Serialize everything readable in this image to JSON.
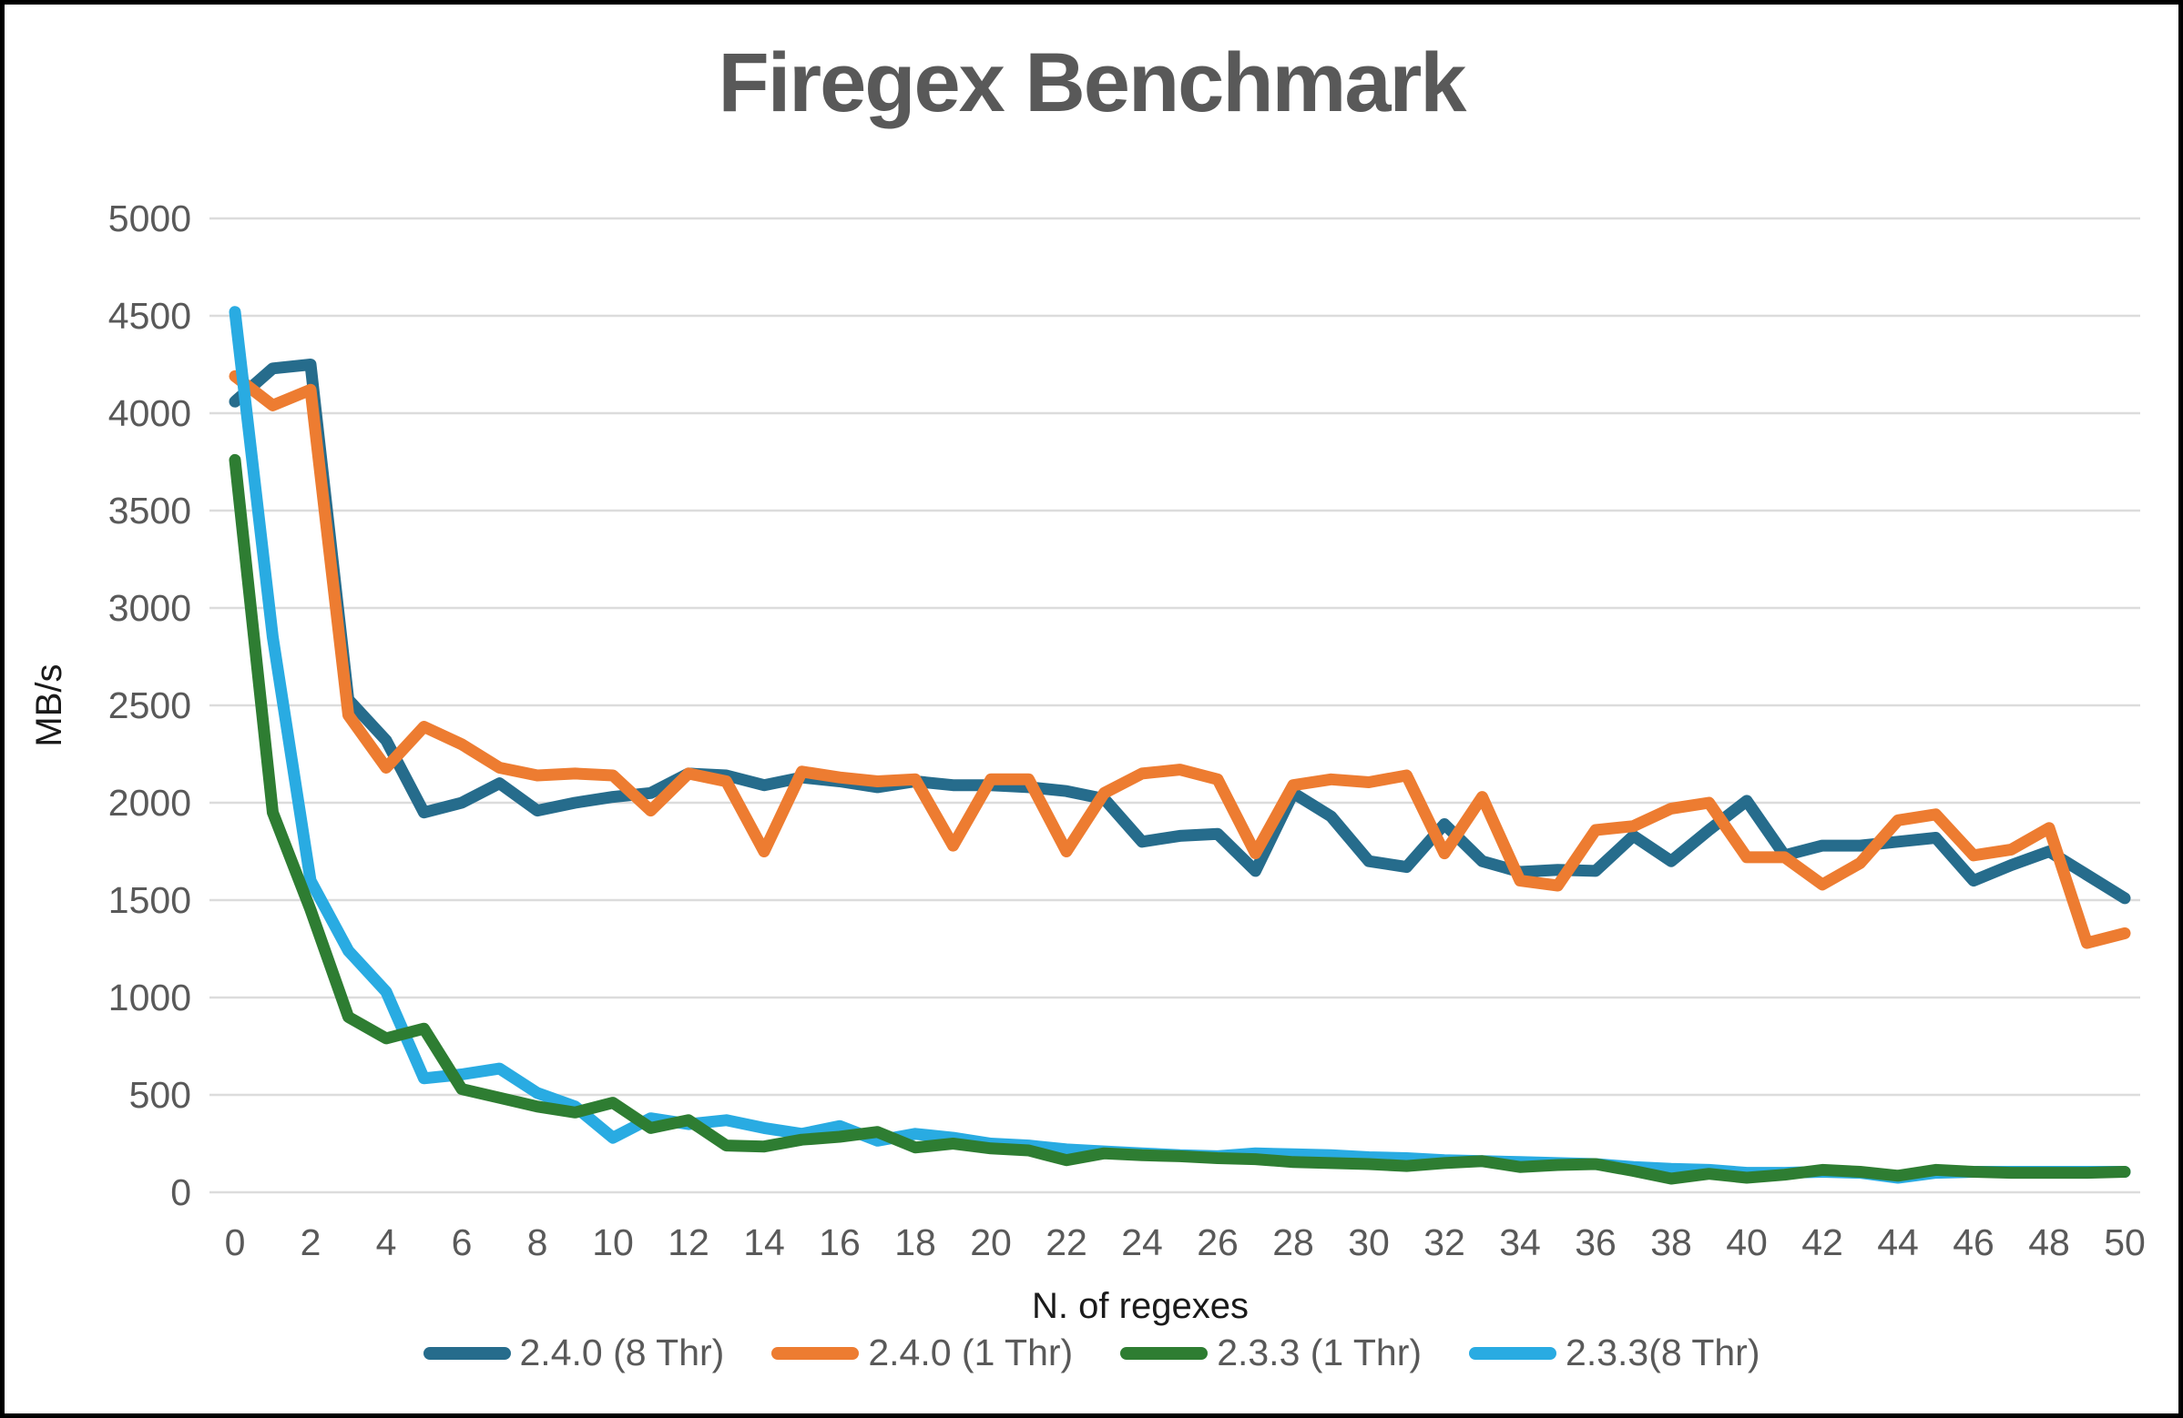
{
  "title": "Firegex Benchmark",
  "colors": {
    "title_text": "#595959",
    "tick_text": "#595959",
    "axis_title_text": "#1a1a1a",
    "gridline": "#dcdcdc",
    "frame_border": "#000000",
    "background": "#ffffff",
    "series_teal": "#266c8c",
    "series_orange": "#ed7c31",
    "series_green": "#2e7d32",
    "series_cyan": "#29abe2"
  },
  "chart_data": {
    "type": "line",
    "title": "Firegex Benchmark",
    "xlabel": "N. of regexes",
    "ylabel": "MB/s",
    "xlim": [
      0,
      50
    ],
    "ylim": [
      0,
      5000
    ],
    "grid": true,
    "legend_position": "bottom",
    "x_ticks": [
      0,
      2,
      4,
      6,
      8,
      10,
      12,
      14,
      16,
      18,
      20,
      22,
      24,
      26,
      28,
      30,
      32,
      34,
      36,
      38,
      40,
      42,
      44,
      46,
      48,
      50
    ],
    "y_ticks": [
      0,
      500,
      1000,
      1500,
      2000,
      2500,
      3000,
      3500,
      4000,
      4500,
      5000
    ],
    "x": [
      0,
      1,
      2,
      3,
      4,
      5,
      6,
      7,
      8,
      9,
      10,
      11,
      12,
      13,
      14,
      15,
      16,
      17,
      18,
      19,
      20,
      21,
      22,
      23,
      24,
      25,
      26,
      27,
      28,
      29,
      30,
      31,
      32,
      33,
      34,
      35,
      36,
      37,
      38,
      39,
      40,
      41,
      42,
      43,
      44,
      45,
      46,
      47,
      48,
      49,
      50
    ],
    "series": [
      {
        "name": "2.4.0 (8 Thr)",
        "color": "#266c8c",
        "values": [
          4060,
          4230,
          4250,
          2530,
          2320,
          1950,
          2000,
          2100,
          1960,
          2000,
          2030,
          2050,
          2150,
          2140,
          2090,
          2130,
          2110,
          2080,
          2110,
          2090,
          2090,
          2080,
          2060,
          2020,
          1800,
          1830,
          1840,
          1650,
          2050,
          1930,
          1700,
          1670,
          1890,
          1700,
          1645,
          1655,
          1650,
          1830,
          1700,
          1860,
          2010,
          1730,
          1780,
          1780,
          1800,
          1820,
          1600,
          1680,
          1750,
          1630,
          1510
        ]
      },
      {
        "name": "2.4.0 (1 Thr)",
        "color": "#ed7c31",
        "values": [
          4190,
          4040,
          4120,
          2450,
          2180,
          2390,
          2300,
          2180,
          2140,
          2150,
          2140,
          1960,
          2150,
          2110,
          1750,
          2160,
          2130,
          2110,
          2120,
          1780,
          2120,
          2120,
          1750,
          2050,
          2150,
          2170,
          2120,
          1740,
          2090,
          2120,
          2105,
          2140,
          1740,
          2030,
          1600,
          1575,
          1860,
          1880,
          1970,
          2000,
          1720,
          1720,
          1580,
          1690,
          1910,
          1940,
          1730,
          1760,
          1870,
          1280,
          1330
        ]
      },
      {
        "name": "2.3.3 (1 Thr)",
        "color": "#2e7d32",
        "values": [
          3760,
          1950,
          1450,
          900,
          790,
          840,
          530,
          485,
          440,
          410,
          460,
          330,
          370,
          240,
          235,
          270,
          285,
          310,
          230,
          250,
          225,
          215,
          165,
          200,
          190,
          185,
          175,
          170,
          155,
          150,
          145,
          135,
          150,
          160,
          130,
          140,
          145,
          110,
          70,
          95,
          75,
          90,
          115,
          105,
          85,
          115,
          105,
          100,
          100,
          100,
          105
        ]
      },
      {
        "name": "2.3.3(8 Thr)",
        "color": "#29abe2",
        "values": [
          4520,
          2850,
          1600,
          1240,
          1030,
          585,
          605,
          635,
          510,
          440,
          280,
          380,
          350,
          370,
          330,
          300,
          340,
          265,
          300,
          280,
          250,
          240,
          220,
          210,
          200,
          190,
          185,
          200,
          195,
          190,
          180,
          175,
          165,
          160,
          155,
          150,
          145,
          130,
          120,
          115,
          100,
          100,
          105,
          100,
          75,
          100,
          105,
          105,
          105,
          105,
          105
        ]
      }
    ]
  }
}
